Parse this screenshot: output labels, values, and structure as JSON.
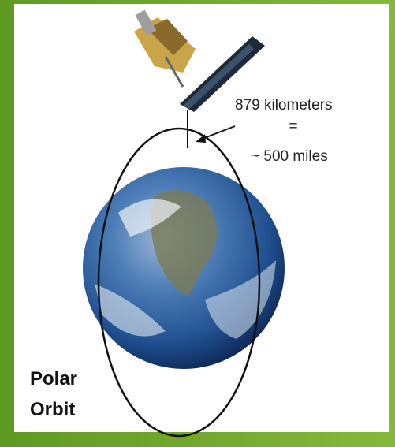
{
  "labels": {
    "distance_km": "879 kilometers",
    "equals": "=",
    "distance_miles": "~ 500 miles",
    "orbit_line1": "Polar",
    "orbit_line2": "Orbit"
  }
}
